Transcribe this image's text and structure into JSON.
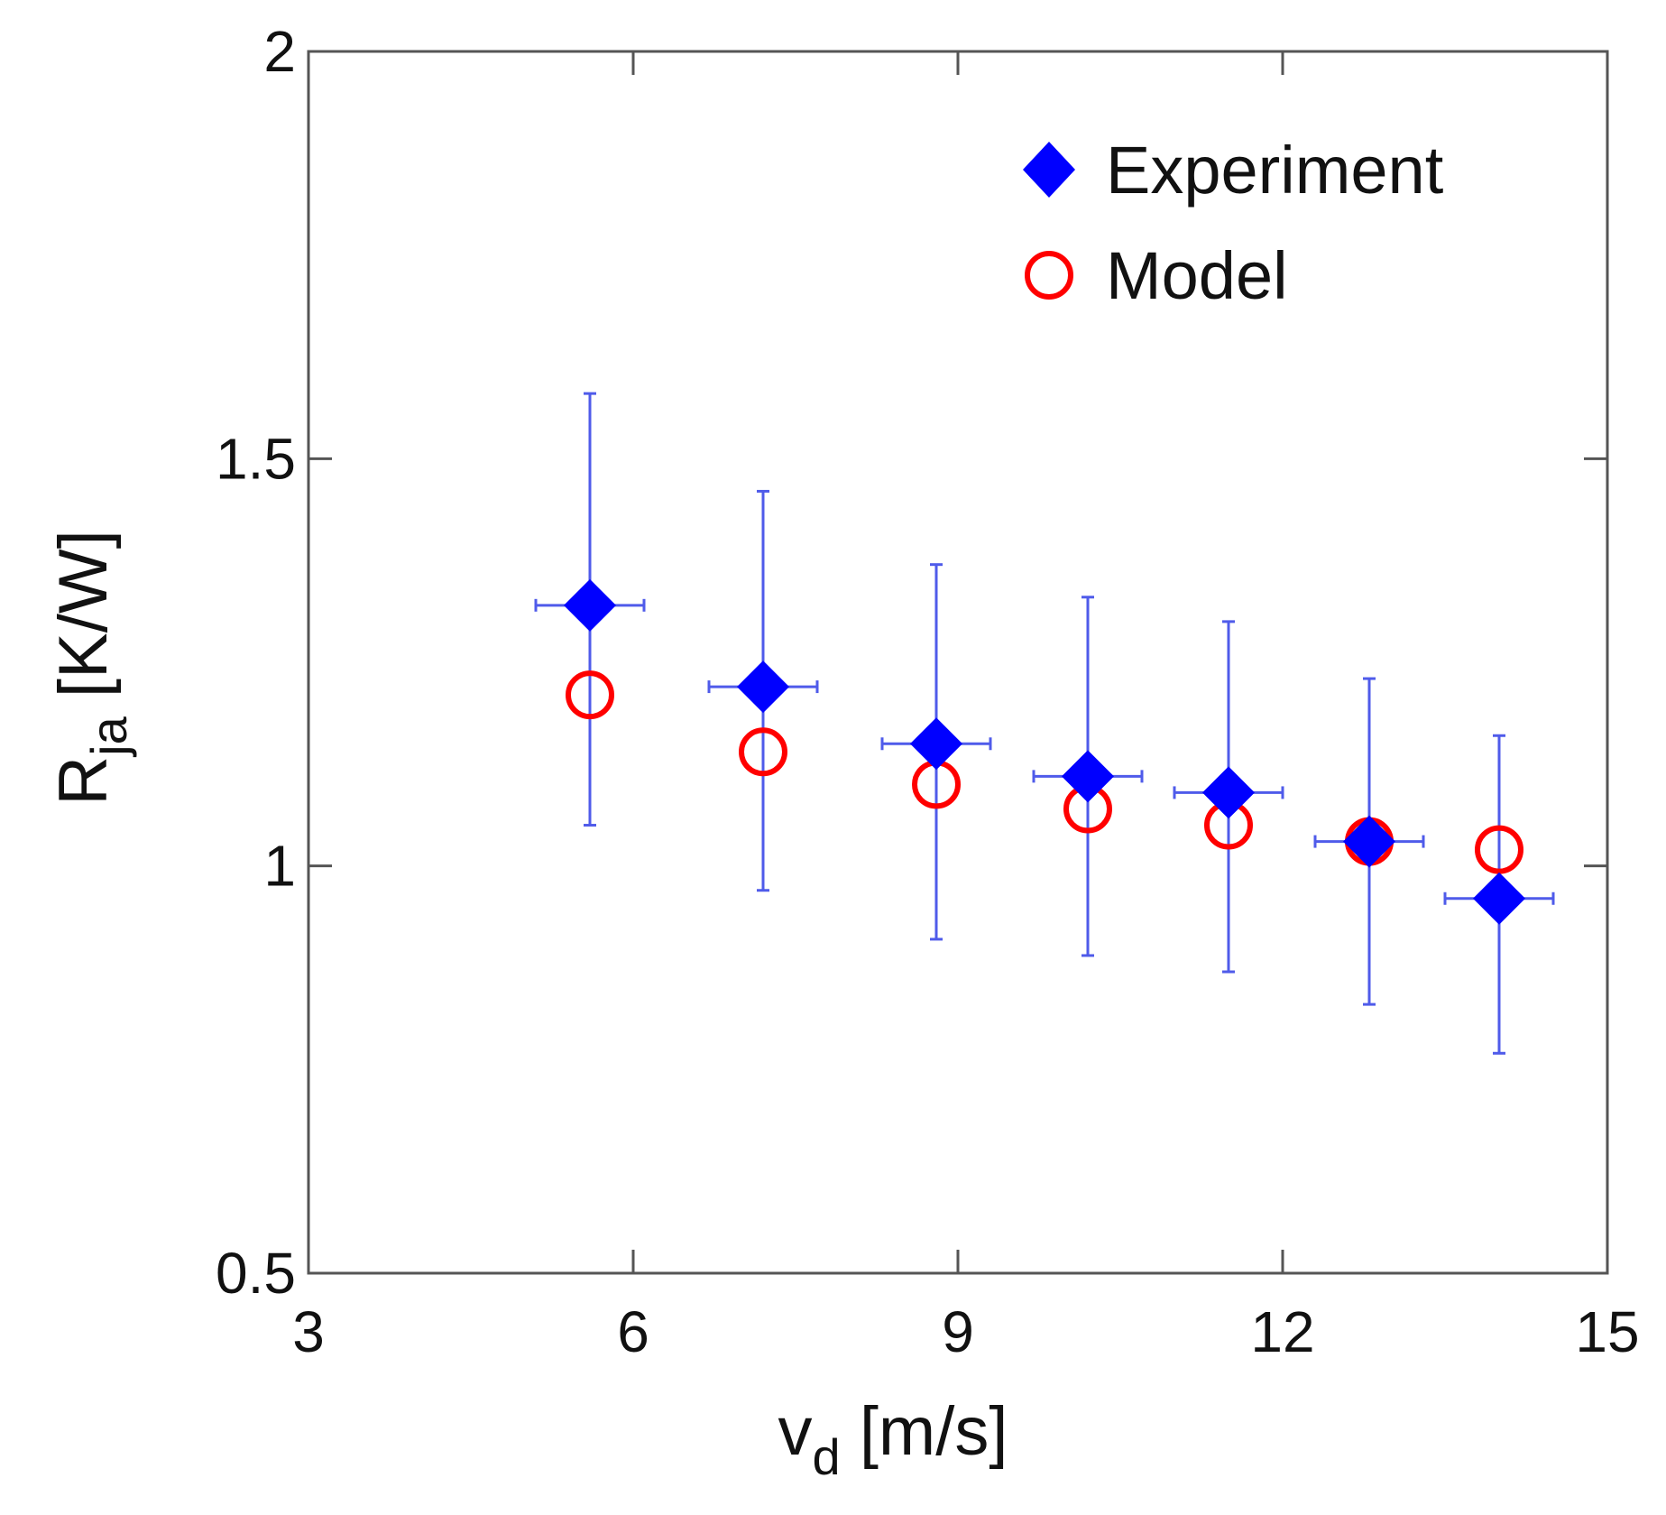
{
  "chart_data": {
    "type": "scatter",
    "title": "",
    "xlabel": {
      "main": "v",
      "sub": "d",
      "unit": "[m/s]"
    },
    "ylabel": {
      "main": "R",
      "sub": "ja",
      "unit": "[K/W]"
    },
    "xlim": [
      3,
      15
    ],
    "ylim": [
      0.5,
      2
    ],
    "xticks": [
      3,
      6,
      9,
      12,
      15
    ],
    "yticks": [
      0.5,
      1,
      1.5,
      2
    ],
    "xtick_labels": [
      "3",
      "6",
      "9",
      "12",
      "15"
    ],
    "ytick_labels": [
      "0.5",
      "1",
      "1.5",
      "2"
    ],
    "grid": false,
    "legend": {
      "position": "top-right",
      "entries": [
        "Experiment",
        "Model"
      ]
    },
    "series": [
      {
        "name": "Experiment",
        "marker": "filled-diamond",
        "color": "#0000ff",
        "errorbar_color": "#4f5bea",
        "x": [
          5.6,
          7.2,
          8.8,
          10.2,
          11.5,
          12.8,
          14.0
        ],
        "y": [
          1.32,
          1.22,
          1.15,
          1.11,
          1.09,
          1.03,
          0.96
        ],
        "yerr_low": [
          1.05,
          0.97,
          0.91,
          0.89,
          0.87,
          0.83,
          0.77
        ],
        "yerr_high": [
          1.58,
          1.46,
          1.37,
          1.33,
          1.3,
          1.23,
          1.16
        ],
        "xerr_low": [
          5.1,
          6.7,
          8.3,
          9.7,
          11.0,
          12.3,
          13.5
        ],
        "xerr_high": [
          6.1,
          7.7,
          9.3,
          10.7,
          12.0,
          13.3,
          14.5
        ]
      },
      {
        "name": "Model",
        "marker": "open-circle",
        "color": "#ff0000",
        "x": [
          5.6,
          7.2,
          8.8,
          10.2,
          11.5,
          12.8,
          14.0
        ],
        "y": [
          1.21,
          1.14,
          1.1,
          1.07,
          1.05,
          1.03,
          1.02
        ]
      }
    ]
  }
}
